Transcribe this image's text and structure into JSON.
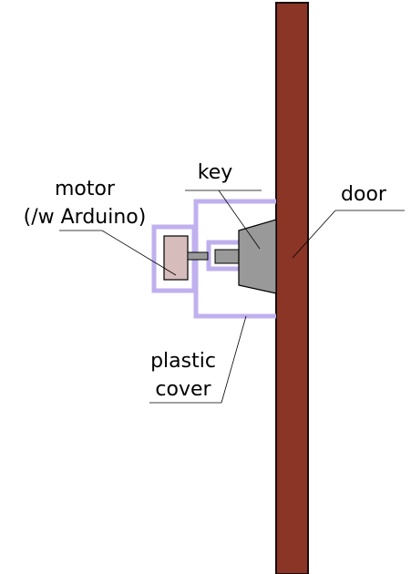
{
  "labels": {
    "key": "key",
    "door": "door",
    "motor_line1": "motor",
    "motor_line2": "(/w Arduino)",
    "cover_line1": "plastic",
    "cover_line2": "cover"
  },
  "colors": {
    "door_fill": "#8b3527",
    "door_stroke": "#1a0a08",
    "cover_stroke": "#c0b0ee",
    "motor_fill": "#d7bcbc",
    "key_fill": "#999999",
    "part_stroke": "#000000",
    "leader_line": "#000000"
  }
}
